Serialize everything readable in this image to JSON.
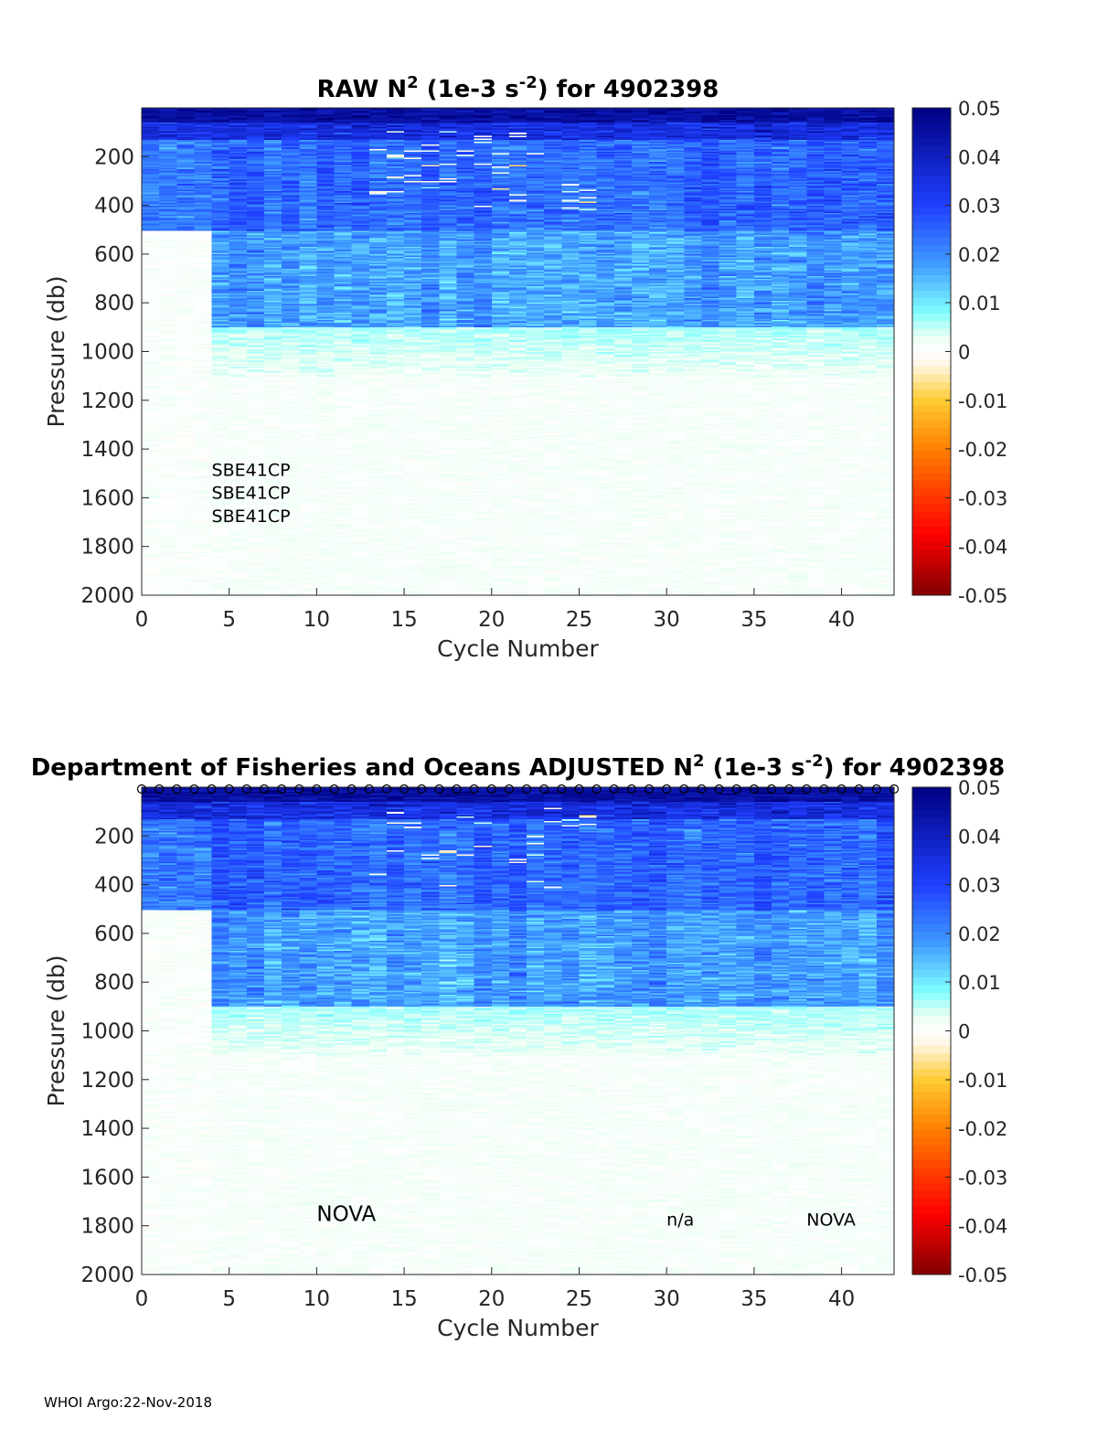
{
  "footer": "WHOI Argo:22-Nov-2018",
  "colors": {
    "colormap_stops": [
      [
        -0.05,
        "#800000"
      ],
      [
        -0.0375,
        "#ff0000"
      ],
      [
        -0.02,
        "#ff8000"
      ],
      [
        -0.01,
        "#ffcc33"
      ],
      [
        -0.003,
        "#fff5e0"
      ],
      [
        0,
        "#ffffff"
      ],
      [
        0.003,
        "#eafff2"
      ],
      [
        0.008,
        "#80ffff"
      ],
      [
        0.018,
        "#3f9bff"
      ],
      [
        0.03,
        "#1f3fff"
      ],
      [
        0.05,
        "#000080"
      ]
    ],
    "axis_text": "#262626",
    "title_text": "#000000"
  },
  "chart_data": [
    {
      "type": "heatmap",
      "title": "RAW N² (1e-3 s⁻²) for 4902398",
      "title_parts": {
        "prefix": "RAW N",
        "sup1": "2",
        "mid": " (1e-3 s",
        "sup2": "-2",
        "suffix": ") for 4902398"
      },
      "xlabel": "Cycle Number",
      "ylabel": "Pressure (db)",
      "xlim": [
        0,
        43
      ],
      "ylim": [
        2000,
        0
      ],
      "xticks": [
        "0",
        "5",
        "10",
        "15",
        "20",
        "25",
        "30",
        "35",
        "40"
      ],
      "yticks": [
        "200",
        "400",
        "600",
        "800",
        "1000",
        "1200",
        "1400",
        "1600",
        "1800",
        "2000"
      ],
      "colorbar": {
        "range": [
          -0.05,
          0.05
        ],
        "ticks": [
          "0.05",
          "0.04",
          "0.03",
          "0.02",
          "0.01",
          "0",
          "-0.01",
          "-0.02",
          "-0.03",
          "-0.04",
          "-0.05"
        ]
      },
      "annotations": [
        {
          "text": "SBE41CP",
          "cycle": 4,
          "pressure": 1510
        },
        {
          "text": "SBE41CP",
          "cycle": 4,
          "pressure": 1605
        },
        {
          "text": "SBE41CP",
          "cycle": 4,
          "pressure": 1700
        }
      ],
      "profile_markers": [],
      "summary": "Strong positive N² (0.03–0.05) in upper 100 db; 0.01–0.03 between 100 and ~900 db for cycles 4–43; near-zero (±0.003) below ~1100 db and for cycles 0–4 below ~500 db."
    },
    {
      "type": "heatmap",
      "title": "Department of Fisheries and Oceans  ADJUSTED N² (1e-3 s⁻²) for 4902398",
      "title_parts": {
        "prefix": "Department of Fisheries and Oceans  ADJUSTED N",
        "sup1": "2",
        "mid": " (1e-3 s",
        "sup2": "-2",
        "suffix": ") for 4902398"
      },
      "xlabel": "Cycle Number",
      "ylabel": "Pressure (db)",
      "xlim": [
        0,
        43
      ],
      "ylim": [
        2000,
        0
      ],
      "xticks": [
        "0",
        "5",
        "10",
        "15",
        "20",
        "25",
        "30",
        "35",
        "40"
      ],
      "yticks": [
        "200",
        "400",
        "600",
        "800",
        "1000",
        "1200",
        "1400",
        "1600",
        "1800",
        "2000"
      ],
      "colorbar": {
        "range": [
          -0.05,
          0.05
        ],
        "ticks": [
          "0.05",
          "0.04",
          "0.03",
          "0.02",
          "0.01",
          "0",
          "-0.01",
          "-0.02",
          "-0.03",
          "-0.04",
          "-0.05"
        ]
      },
      "annotations": [
        {
          "text": "NOVA",
          "cycle": 10,
          "pressure": 1780,
          "large": true
        },
        {
          "text": "n/a",
          "cycle": 30,
          "pressure": 1800
        },
        {
          "text": "NOVA",
          "cycle": 38,
          "pressure": 1800
        }
      ],
      "profile_markers": {
        "symbol": "o",
        "cycles_from": 0,
        "cycles_to": 43,
        "pressure": 0
      },
      "summary": "Same structure as RAW with adjusted values; circle markers at surface for each cycle."
    }
  ]
}
